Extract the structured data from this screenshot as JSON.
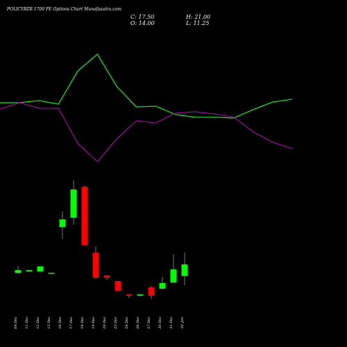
{
  "title": "POLICYBZR 1700 PE Options Chart Munafasutra.com",
  "ohlc_text": [
    "C: 17.50",
    "O: 14.00",
    "H: 21.00",
    "L: 11.25"
  ],
  "chart_data": [
    {
      "type": "line",
      "ylim": [
        0,
        100
      ],
      "series": [
        {
          "color": "#00ff00",
          "values": [
            50.9,
            50.9,
            52.3,
            50.0,
            71.8,
            82.7,
            61.4,
            48.2,
            48.6,
            43.2,
            41.4,
            41.4,
            40.9,
            46.4,
            51.4,
            53.2
          ]
        },
        {
          "color": "#aa00aa",
          "values": [
            46.8,
            50.9,
            47.3,
            47.3,
            24.1,
            12.3,
            27.3,
            39.1,
            37.7,
            44.1,
            45.0,
            43.6,
            41.4,
            31.8,
            25.0,
            20.9
          ]
        }
      ]
    },
    {
      "type": "candlestick",
      "ylim": [
        5,
        45
      ],
      "up_color": "#00ff00",
      "down_color": "#ff0000",
      "categories": [
        "09 Dec",
        "11 Dec",
        "12 Dec",
        "13 Dec",
        "16 Dec",
        "17 Dec",
        "18 Dec",
        "19 Dec",
        "20 Dec",
        "23 Dec",
        "24 Dec",
        "26 Dec",
        "27 Dec",
        "30 Dec",
        "31 Dec",
        "01 Jan"
      ],
      "open": [
        15.0,
        15.4,
        15.4,
        15.0,
        28.75,
        31.5,
        40.8,
        21.0,
        14.2,
        12.5,
        8.5,
        8.1,
        10.6,
        10.2,
        12.1,
        14.0
      ],
      "high": [
        17.1,
        15.8,
        16.9,
        15.0,
        33.5,
        42.7,
        41.25,
        22.9,
        14.2,
        12.5,
        8.5,
        8.5,
        11.0,
        13.75,
        20.6,
        21.0
      ],
      "low": [
        14.6,
        15.4,
        15.4,
        15.0,
        25.2,
        29.4,
        23.1,
        13.1,
        12.9,
        9.4,
        7.5,
        7.9,
        7.1,
        10.2,
        12.1,
        11.25
      ],
      "close": [
        15.8,
        15.8,
        16.9,
        15.0,
        31.0,
        40.0,
        23.3,
        13.5,
        13.5,
        9.6,
        8.1,
        8.5,
        8.1,
        11.9,
        16.0,
        17.5
      ]
    }
  ]
}
